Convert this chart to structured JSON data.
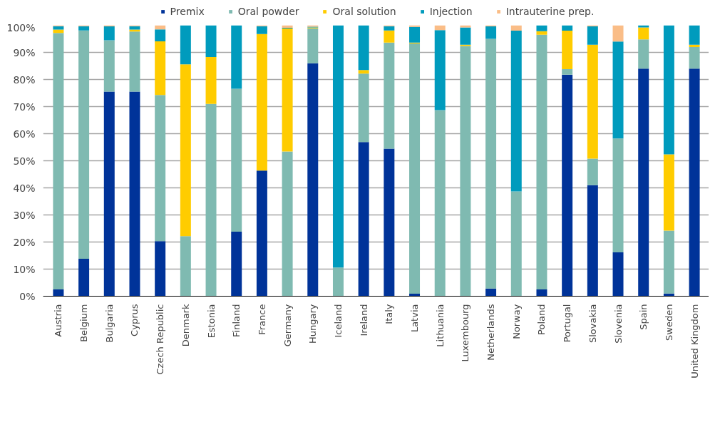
{
  "chart_data": {
    "type": "bar",
    "stacked": true,
    "categories": [
      "Austria",
      "Belgium",
      "Bulgaria",
      "Cyprus",
      "Czech Republic",
      "Denmark",
      "Estonia",
      "Finland",
      "France",
      "Germany",
      "Hungary",
      "Iceland",
      "Ireland",
      "Italy",
      "Latvia",
      "Lithuania",
      "Luxembourg",
      "Netherlands",
      "Norway",
      "Poland",
      "Portugal",
      "Slovakia",
      "Slovenia",
      "Spain",
      "Sweden",
      "United Kingdom"
    ],
    "series": [
      {
        "name": "Premix",
        "color": "#003399",
        "values": [
          2.5,
          13.8,
          75.5,
          75.5,
          20.3,
          0,
          0,
          23.8,
          46.4,
          0,
          86,
          0,
          56.9,
          54.5,
          0.9,
          0,
          0,
          2.8,
          0,
          2.5,
          81.8,
          41,
          16.2,
          84,
          1,
          84
        ]
      },
      {
        "name": "Oral powder",
        "color": "#7fbab1",
        "values": [
          94.7,
          84.3,
          19,
          22.2,
          54,
          22.2,
          71,
          52.8,
          0,
          53.4,
          12.9,
          10.6,
          25.3,
          39.1,
          92.4,
          68.7,
          92.4,
          92.2,
          38.7,
          94,
          2,
          9.8,
          42,
          10.8,
          23.2,
          8
        ]
      },
      {
        "name": "Oral solution",
        "color": "#ffcc00",
        "values": [
          1.2,
          0,
          0,
          0.7,
          19.8,
          63.4,
          17.3,
          0,
          50.4,
          45.4,
          0.3,
          0,
          1.3,
          4.5,
          0.3,
          0,
          0.4,
          0,
          0,
          1.3,
          14.2,
          42,
          0,
          4.4,
          28.2,
          0.8
        ]
      },
      {
        "name": "Injection",
        "color": "#009bbd",
        "values": [
          1.3,
          1.6,
          5.1,
          1.3,
          4.4,
          14.4,
          11.7,
          23.4,
          2.9,
          0.3,
          0.3,
          89.4,
          16.5,
          1.6,
          5.8,
          29.5,
          6.4,
          4.6,
          59.3,
          2.2,
          2,
          6.8,
          35.8,
          0.8,
          47.6,
          7.2
        ]
      },
      {
        "name": "Intrauterine prep.",
        "color": "#fabd87",
        "values": [
          0.3,
          0.3,
          0.4,
          0.3,
          1.5,
          0,
          0,
          0,
          0.3,
          0.9,
          0.5,
          0,
          0,
          0.3,
          0.6,
          1.8,
          0.8,
          0.4,
          2,
          0,
          0,
          0.4,
          6,
          0,
          0,
          0
        ]
      }
    ],
    "ylim": [
      0,
      100
    ],
    "yticks": [
      {
        "value": 0,
        "label": "0%"
      },
      {
        "value": 10,
        "label": "10%"
      },
      {
        "value": 20,
        "label": "20%"
      },
      {
        "value": 30,
        "label": "30%"
      },
      {
        "value": 40,
        "label": "40%"
      },
      {
        "value": 50,
        "label": "50%"
      },
      {
        "value": 60,
        "label": "60%"
      },
      {
        "value": 70,
        "label": "70%"
      },
      {
        "value": 80,
        "label": "80%"
      },
      {
        "value": 90,
        "label": "90%"
      },
      {
        "value": 100,
        "label": "100%"
      }
    ],
    "grid": "y",
    "legend": "top"
  }
}
